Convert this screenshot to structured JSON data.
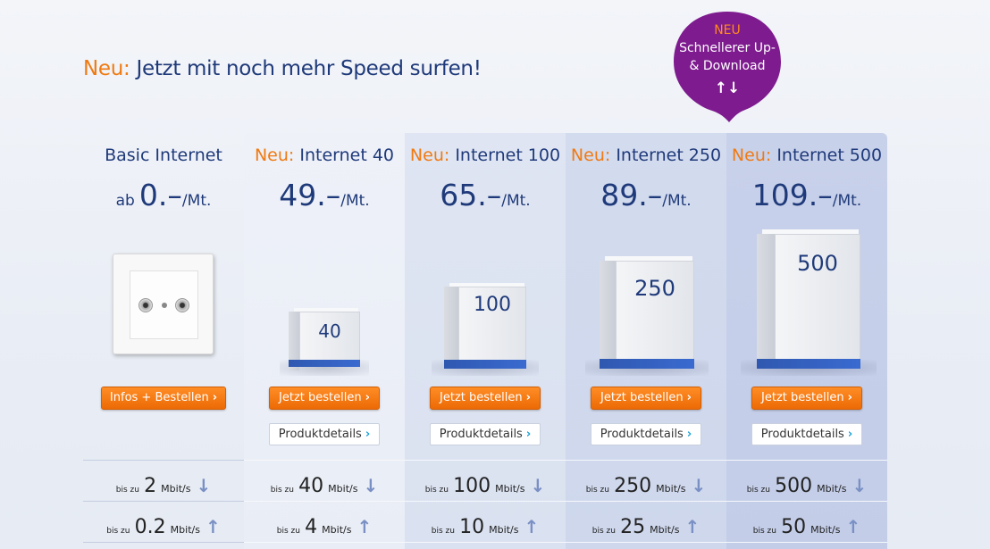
{
  "headline": {
    "prefix": "Neu:",
    "text": "Jetzt mit noch mehr Speed surfen!"
  },
  "badge": {
    "tag": "NEU",
    "line1": "Schnellerer Up-",
    "line2": "& Download",
    "arrows": "↑↓",
    "color": "#7e1b8f"
  },
  "colors": {
    "accent": "#f07a12",
    "brand": "#1f3a7a",
    "link": "#1aa0d8"
  },
  "plans": [
    {
      "prefix": "",
      "name": "Basic Internet",
      "ab": "ab",
      "price": "0.–",
      "unit": "/Mt.",
      "order": "Infos + Bestellen",
      "details": "",
      "down": {
        "bis": "bis zu",
        "num": "2",
        "unit": "Mbit/s",
        "arrow": "↓"
      },
      "up": {
        "bis": "bis zu",
        "num": "0.2",
        "unit": "Mbit/s",
        "arrow": "↑"
      }
    },
    {
      "prefix": "Neu:",
      "name": "Internet 40",
      "ab": "",
      "price": "49.–",
      "unit": "/Mt.",
      "box_label": "40",
      "box_side": "40",
      "order": "Jetzt bestellen",
      "details": "Produktdetails",
      "down": {
        "bis": "bis zu",
        "num": "40",
        "unit": "Mbit/s",
        "arrow": "↓"
      },
      "up": {
        "bis": "bis zu",
        "num": "4",
        "unit": "Mbit/s",
        "arrow": "↑"
      }
    },
    {
      "prefix": "Neu:",
      "name": "Internet 100",
      "ab": "",
      "price": "65.–",
      "unit": "/Mt.",
      "box_label": "100",
      "box_side": "100",
      "order": "Jetzt bestellen",
      "details": "Produktdetails",
      "down": {
        "bis": "bis zu",
        "num": "100",
        "unit": "Mbit/s",
        "arrow": "↓"
      },
      "up": {
        "bis": "bis zu",
        "num": "10",
        "unit": "Mbit/s",
        "arrow": "↑"
      }
    },
    {
      "prefix": "Neu:",
      "name": "Internet 250",
      "ab": "",
      "price": "89.–",
      "unit": "/Mt.",
      "box_label": "250",
      "box_side": "250",
      "order": "Jetzt bestellen",
      "details": "Produktdetails",
      "down": {
        "bis": "bis zu",
        "num": "250",
        "unit": "Mbit/s",
        "arrow": "↓"
      },
      "up": {
        "bis": "bis zu",
        "num": "25",
        "unit": "Mbit/s",
        "arrow": "↑"
      }
    },
    {
      "prefix": "Neu:",
      "name": "Internet 500",
      "ab": "",
      "price": "109.–",
      "unit": "/Mt.",
      "box_label": "500",
      "box_side": "500",
      "order": "Jetzt bestellen",
      "details": "Produktdetails",
      "down": {
        "bis": "bis zu",
        "num": "500",
        "unit": "Mbit/s",
        "arrow": "↓"
      },
      "up": {
        "bis": "bis zu",
        "num": "50",
        "unit": "Mbit/s",
        "arrow": "↑"
      }
    }
  ]
}
